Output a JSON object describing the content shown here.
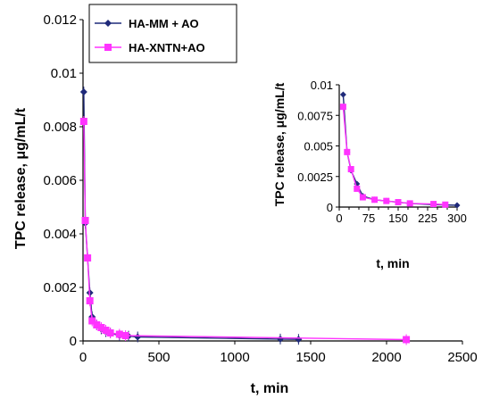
{
  "chart_data": [
    {
      "type": "line",
      "xlabel": "t, min",
      "ylabel": "TPC release, μg/mL/t",
      "xlim": [
        0,
        2500
      ],
      "ylim": [
        0,
        0.012
      ],
      "xticks": [
        "0",
        "500",
        "1000",
        "1500",
        "2000",
        "2500"
      ],
      "yticks": [
        "0",
        "0.002",
        "0.004",
        "0.006",
        "0.008",
        "0.01",
        "0.012"
      ],
      "grid": false,
      "legend": "top-left",
      "series": [
        {
          "name": "HA-MM + AO",
          "color": "#1f2a7a",
          "marker": "diamond",
          "x": [
            5,
            15,
            30,
            45,
            60,
            90,
            120,
            150,
            180,
            240,
            300,
            360,
            1300,
            1420
          ],
          "y": [
            0.0093,
            0.0044,
            0.0031,
            0.0018,
            0.0009,
            0.0006,
            0.00045,
            0.00035,
            0.0003,
            0.0002,
            0.00018,
            0.00015,
            7e-05,
            6e-05
          ]
        },
        {
          "name": "HA-XNTN+AO",
          "color": "#ff33ff",
          "marker": "square",
          "x": [
            5,
            15,
            30,
            45,
            60,
            90,
            120,
            150,
            180,
            240,
            280,
            2130
          ],
          "y": [
            0.0082,
            0.0045,
            0.0031,
            0.0015,
            0.00075,
            0.0006,
            0.0005,
            0.0004,
            0.0003,
            0.00025,
            0.0002,
            5e-05
          ]
        }
      ]
    },
    {
      "type": "line",
      "xlabel": "t, min",
      "ylabel": "TPC release, μg/mL/t",
      "xlim": [
        0,
        300
      ],
      "ylim": [
        0,
        0.01
      ],
      "xticks": [
        "0",
        "75",
        "150",
        "225",
        "300"
      ],
      "xticks_minor": [
        "25",
        "50",
        "100",
        "125",
        "175",
        "200",
        "250",
        "275"
      ],
      "yticks": [
        "0",
        "0.0025",
        "0.005",
        "0.0075",
        "0.01"
      ],
      "grid": false,
      "legend": "none",
      "series": [
        {
          "name": "HA-MM + AO",
          "color": "#1f2a7a",
          "marker": "diamond",
          "x": [
            10,
            20,
            30,
            45,
            60,
            90,
            120,
            150,
            180,
            240,
            300
          ],
          "y": [
            0.0092,
            0.0045,
            0.003,
            0.0019,
            0.0009,
            0.0006,
            0.0005,
            0.0004,
            0.0003,
            0.0002,
            0.00015
          ]
        },
        {
          "name": "HA-XNTN+AO",
          "color": "#ff33ff",
          "marker": "square",
          "x": [
            10,
            20,
            30,
            45,
            60,
            90,
            120,
            150,
            180,
            240,
            270
          ],
          "y": [
            0.0082,
            0.0045,
            0.0031,
            0.0015,
            0.0008,
            0.0006,
            0.0005,
            0.0004,
            0.0003,
            0.00025,
            0.0002
          ]
        }
      ]
    }
  ]
}
